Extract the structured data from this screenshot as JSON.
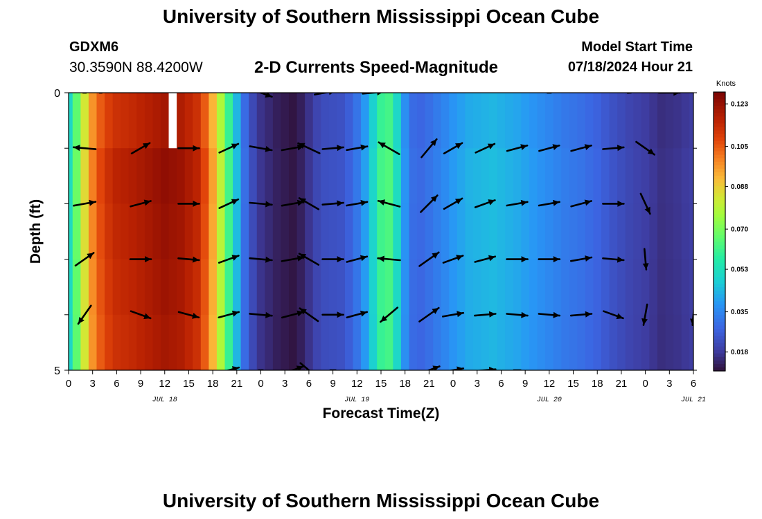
{
  "header": {
    "top_title": "University of Southern Mississippi Ocean Cube",
    "bottom_title": "University of Southern Mississippi Ocean Cube",
    "station": "GDXM6",
    "lat_lon": "30.3590N  88.4200W",
    "chart_title": "2-D Currents Speed-Magnitude",
    "model_start_label": "Model Start Time",
    "model_start_value": "07/18/2024 Hour 21"
  },
  "chart_data": {
    "type": "heatmap",
    "title": "2-D Currents Speed-Magnitude",
    "xlabel": "Forecast Time(Z)",
    "ylabel": "Depth (ft)",
    "ylim": [
      0,
      5
    ],
    "y_ticks": [
      "0",
      "5"
    ],
    "x_tick_labels": [
      "0",
      "3",
      "6",
      "9",
      "12",
      "15",
      "18",
      "21",
      "0",
      "3",
      "6",
      "9",
      "12",
      "15",
      "18",
      "21",
      "0",
      "3",
      "6",
      "9",
      "12",
      "15",
      "18",
      "21",
      "0",
      "3",
      "6"
    ],
    "date_labels": [
      {
        "label": "JUL 18",
        "hour": 12
      },
      {
        "label": "JUL 19",
        "hour": 36
      },
      {
        "label": "JUL 20",
        "hour": 60
      },
      {
        "label": "JUL 21",
        "hour": 78
      }
    ],
    "x_hours_range": [
      0,
      78
    ],
    "colorbar": {
      "label": "Knots",
      "min": 0.01,
      "max": 0.128,
      "ticks": [
        "0.123",
        "0.105",
        "0.088",
        "0.070",
        "0.053",
        "0.035",
        "0.018"
      ],
      "tick_values": [
        0.123,
        0.105,
        0.088,
        0.07,
        0.053,
        0.035,
        0.018
      ]
    },
    "missing_cell": {
      "hour": 13,
      "depth_row": 0
    },
    "speed_by_hour": [
      {
        "hour": 0,
        "speed": 0.052
      },
      {
        "hour": 1,
        "speed": 0.068
      },
      {
        "hour": 2,
        "speed": 0.086
      },
      {
        "hour": 3,
        "speed": 0.1
      },
      {
        "hour": 4,
        "speed": 0.108
      },
      {
        "hour": 5,
        "speed": 0.113
      },
      {
        "hour": 6,
        "speed": 0.116
      },
      {
        "hour": 8,
        "speed": 0.118
      },
      {
        "hour": 10,
        "speed": 0.121
      },
      {
        "hour": 12,
        "speed": 0.124
      },
      {
        "hour": 14,
        "speed": 0.122
      },
      {
        "hour": 16,
        "speed": 0.116
      },
      {
        "hour": 17,
        "speed": 0.108
      },
      {
        "hour": 18,
        "speed": 0.095
      },
      {
        "hour": 19,
        "speed": 0.08
      },
      {
        "hour": 20,
        "speed": 0.062
      },
      {
        "hour": 21,
        "speed": 0.045
      },
      {
        "hour": 22,
        "speed": 0.03
      },
      {
        "hour": 23,
        "speed": 0.022
      },
      {
        "hour": 24,
        "speed": 0.017
      },
      {
        "hour": 25,
        "speed": 0.015
      },
      {
        "hour": 26,
        "speed": 0.013
      },
      {
        "hour": 27,
        "speed": 0.012
      },
      {
        "hour": 28,
        "speed": 0.011
      },
      {
        "hour": 29,
        "speed": 0.013
      },
      {
        "hour": 30,
        "speed": 0.017
      },
      {
        "hour": 31,
        "speed": 0.021
      },
      {
        "hour": 32,
        "speed": 0.023
      },
      {
        "hour": 34,
        "speed": 0.024
      },
      {
        "hour": 35,
        "speed": 0.027
      },
      {
        "hour": 36,
        "speed": 0.032
      },
      {
        "hour": 37,
        "speed": 0.04
      },
      {
        "hour": 38,
        "speed": 0.05
      },
      {
        "hour": 39,
        "speed": 0.062
      },
      {
        "hour": 40,
        "speed": 0.064
      },
      {
        "hour": 41,
        "speed": 0.052
      },
      {
        "hour": 42,
        "speed": 0.038
      },
      {
        "hour": 43,
        "speed": 0.03
      },
      {
        "hour": 44,
        "speed": 0.029
      },
      {
        "hour": 45,
        "speed": 0.031
      },
      {
        "hour": 47,
        "speed": 0.036
      },
      {
        "hour": 48,
        "speed": 0.039
      },
      {
        "hour": 50,
        "speed": 0.043
      },
      {
        "hour": 53,
        "speed": 0.045
      },
      {
        "hour": 56,
        "speed": 0.042
      },
      {
        "hour": 58,
        "speed": 0.039
      },
      {
        "hour": 60,
        "speed": 0.036
      },
      {
        "hour": 62,
        "speed": 0.033
      },
      {
        "hour": 64,
        "speed": 0.031
      },
      {
        "hour": 66,
        "speed": 0.028
      },
      {
        "hour": 68,
        "speed": 0.024
      },
      {
        "hour": 70,
        "speed": 0.021
      },
      {
        "hour": 72,
        "speed": 0.019
      },
      {
        "hour": 74,
        "speed": 0.016
      },
      {
        "hour": 76,
        "speed": 0.017
      },
      {
        "hour": 78,
        "speed": 0.019
      }
    ],
    "depth_speed_factor": [
      0.97,
      1.0,
      0.99,
      0.98,
      0.97
    ],
    "vectors_by_depth": [
      {
        "depth_row": 0,
        "arrows": [
          {
            "hour": 2,
            "angle": 0,
            "len": 4
          },
          {
            "hour": 4,
            "angle": 0,
            "len": 3
          },
          {
            "hour": 24,
            "angle": -20,
            "len": 34
          },
          {
            "hour": 32,
            "angle": 10,
            "len": 30
          },
          {
            "hour": 38,
            "angle": 5,
            "len": 30
          },
          {
            "hour": 60,
            "angle": 0,
            "len": 5
          },
          {
            "hour": 70,
            "angle": 5,
            "len": 5
          },
          {
            "hour": 75,
            "angle": 0,
            "len": 30
          }
        ]
      },
      {
        "depth_row": 1,
        "arrows": [
          {
            "hour": 2,
            "angle": 175,
            "len": 32
          },
          {
            "hour": 9,
            "angle": 30,
            "len": 30
          },
          {
            "hour": 15,
            "angle": 0,
            "len": 30
          },
          {
            "hour": 20,
            "angle": 25,
            "len": 30
          },
          {
            "hour": 24,
            "angle": -10,
            "len": 32
          },
          {
            "hour": 28,
            "angle": 10,
            "len": 32
          },
          {
            "hour": 30,
            "angle": 155,
            "len": 34
          },
          {
            "hour": 33,
            "angle": 5,
            "len": 30
          },
          {
            "hour": 36,
            "angle": 10,
            "len": 30
          },
          {
            "hour": 40,
            "angle": 150,
            "len": 34
          },
          {
            "hour": 45,
            "angle": 50,
            "len": 34
          },
          {
            "hour": 48,
            "angle": 30,
            "len": 30
          },
          {
            "hour": 52,
            "angle": 25,
            "len": 30
          },
          {
            "hour": 56,
            "angle": 15,
            "len": 30
          },
          {
            "hour": 60,
            "angle": 15,
            "len": 30
          },
          {
            "hour": 64,
            "angle": 15,
            "len": 30
          },
          {
            "hour": 68,
            "angle": 5,
            "len": 30
          },
          {
            "hour": 72,
            "angle": -35,
            "len": 32
          }
        ]
      },
      {
        "depth_row": 2,
        "arrows": [
          {
            "hour": 2,
            "angle": 10,
            "len": 32
          },
          {
            "hour": 9,
            "angle": 15,
            "len": 30
          },
          {
            "hour": 15,
            "angle": 0,
            "len": 30
          },
          {
            "hour": 20,
            "angle": 25,
            "len": 30
          },
          {
            "hour": 24,
            "angle": -5,
            "len": 32
          },
          {
            "hour": 28,
            "angle": 10,
            "len": 32
          },
          {
            "hour": 30,
            "angle": 150,
            "len": 32
          },
          {
            "hour": 33,
            "angle": 5,
            "len": 30
          },
          {
            "hour": 36,
            "angle": 10,
            "len": 30
          },
          {
            "hour": 40,
            "angle": 165,
            "len": 32
          },
          {
            "hour": 45,
            "angle": 45,
            "len": 34
          },
          {
            "hour": 48,
            "angle": 30,
            "len": 30
          },
          {
            "hour": 52,
            "angle": 20,
            "len": 30
          },
          {
            "hour": 56,
            "angle": 10,
            "len": 30
          },
          {
            "hour": 60,
            "angle": 10,
            "len": 30
          },
          {
            "hour": 64,
            "angle": 15,
            "len": 30
          },
          {
            "hour": 68,
            "angle": 0,
            "len": 30
          },
          {
            "hour": 72,
            "angle": -65,
            "len": 32
          }
        ]
      },
      {
        "depth_row": 3,
        "arrows": [
          {
            "hour": 2,
            "angle": 35,
            "len": 32
          },
          {
            "hour": 9,
            "angle": 0,
            "len": 30
          },
          {
            "hour": 15,
            "angle": -5,
            "len": 30
          },
          {
            "hour": 20,
            "angle": 20,
            "len": 30
          },
          {
            "hour": 24,
            "angle": -5,
            "len": 32
          },
          {
            "hour": 28,
            "angle": 10,
            "len": 32
          },
          {
            "hour": 30,
            "angle": 150,
            "len": 32
          },
          {
            "hour": 33,
            "angle": 0,
            "len": 30
          },
          {
            "hour": 36,
            "angle": 15,
            "len": 30
          },
          {
            "hour": 40,
            "angle": 175,
            "len": 32
          },
          {
            "hour": 45,
            "angle": 35,
            "len": 34
          },
          {
            "hour": 48,
            "angle": 20,
            "len": 30
          },
          {
            "hour": 52,
            "angle": 15,
            "len": 30
          },
          {
            "hour": 56,
            "angle": 0,
            "len": 30
          },
          {
            "hour": 60,
            "angle": 0,
            "len": 30
          },
          {
            "hour": 64,
            "angle": 10,
            "len": 30
          },
          {
            "hour": 68,
            "angle": -5,
            "len": 30
          },
          {
            "hour": 72,
            "angle": -85,
            "len": 30
          }
        ]
      },
      {
        "depth_row": 4,
        "arrows": [
          {
            "hour": 2,
            "angle": -125,
            "len": 32
          },
          {
            "hour": 9,
            "angle": -20,
            "len": 30
          },
          {
            "hour": 15,
            "angle": -15,
            "len": 30
          },
          {
            "hour": 20,
            "angle": 15,
            "len": 30
          },
          {
            "hour": 24,
            "angle": -5,
            "len": 32
          },
          {
            "hour": 28,
            "angle": 15,
            "len": 32
          },
          {
            "hour": 30,
            "angle": 145,
            "len": 32
          },
          {
            "hour": 33,
            "angle": 0,
            "len": 30
          },
          {
            "hour": 36,
            "angle": 15,
            "len": 30
          },
          {
            "hour": 40,
            "angle": -140,
            "len": 32
          },
          {
            "hour": 45,
            "angle": 35,
            "len": 34
          },
          {
            "hour": 48,
            "angle": 10,
            "len": 30
          },
          {
            "hour": 52,
            "angle": 5,
            "len": 30
          },
          {
            "hour": 56,
            "angle": -5,
            "len": 30
          },
          {
            "hour": 60,
            "angle": -5,
            "len": 30
          },
          {
            "hour": 64,
            "angle": 5,
            "len": 30
          },
          {
            "hour": 68,
            "angle": -20,
            "len": 30
          },
          {
            "hour": 72,
            "angle": -100,
            "len": 30
          },
          {
            "hour": 78,
            "angle": -95,
            "len": 30
          }
        ]
      },
      {
        "depth_row": 5,
        "arrows": [
          {
            "hour": 20,
            "angle": 15,
            "len": 30
          },
          {
            "hour": 24,
            "angle": 0,
            "len": 6
          },
          {
            "hour": 28,
            "angle": 20,
            "len": 32
          },
          {
            "hour": 30,
            "angle": -40,
            "len": 32
          },
          {
            "hour": 33,
            "angle": 0,
            "len": 8
          },
          {
            "hour": 45,
            "angle": 20,
            "len": 32
          },
          {
            "hour": 48,
            "angle": 10,
            "len": 30
          },
          {
            "hour": 52,
            "angle": 5,
            "len": 30
          },
          {
            "hour": 56,
            "angle": 0,
            "len": 10
          }
        ]
      }
    ]
  }
}
